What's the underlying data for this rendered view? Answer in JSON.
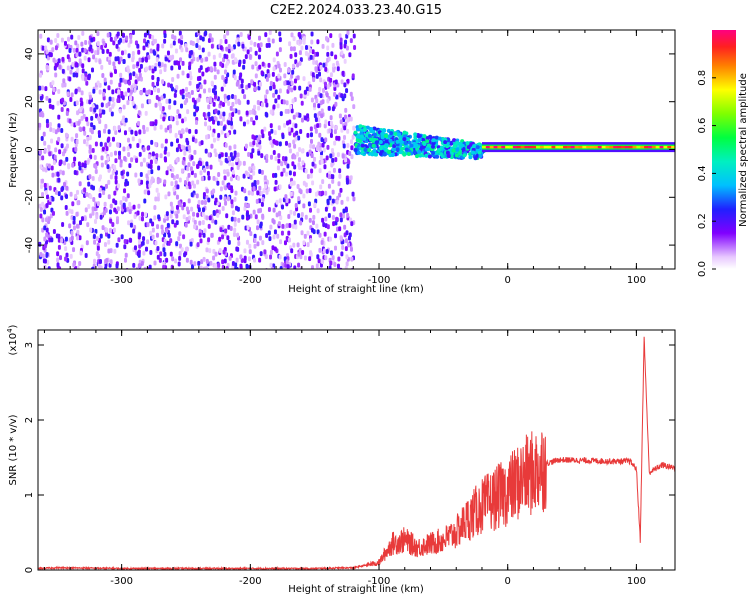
{
  "title": "C2E2.2024.033.23.40.G15",
  "colors": {
    "snr_line": "#e83a3a",
    "frame": "#000000"
  },
  "chart_data": [
    {
      "type": "heatmap",
      "xlabel": "Height of straight line (km)",
      "ylabel": "Frequency (Hz)",
      "xlim": [
        -365,
        130
      ],
      "ylim": [
        -50,
        50
      ],
      "xticks": [
        -300,
        -200,
        -100,
        0,
        100
      ],
      "xtick_labels": [
        "-300",
        "-200",
        "-100",
        "0",
        "100"
      ],
      "yticks": [
        -40,
        -20,
        0,
        20,
        40
      ],
      "ytick_labels": [
        "-40",
        "-20",
        "0",
        "20",
        "40"
      ],
      "colorbar": {
        "label": "Normalized spectral amplitude",
        "range": [
          0,
          1
        ],
        "ticks": [
          0.0,
          0.2,
          0.4,
          0.6,
          0.8
        ],
        "tick_labels": [
          "0.0",
          "0.2",
          "0.4",
          "0.6",
          "0.8"
        ]
      },
      "regions": [
        {
          "description_x": [
            -365,
            -120
          ],
          "pattern": "broadband noise",
          "amplitude": [
            0.0,
            0.25
          ]
        },
        {
          "description_x": [
            -120,
            -20
          ],
          "pattern": "drifting band near 0 Hz",
          "freq_center": [
            5,
            0
          ],
          "amplitude": [
            0.2,
            0.5
          ]
        },
        {
          "description_x": [
            -20,
            130
          ],
          "pattern": "narrow line at ~1 Hz",
          "freq_center": [
            1,
            1
          ],
          "amplitude": [
            0.7,
            1.0
          ]
        }
      ]
    },
    {
      "type": "line",
      "xlabel": "Height of straight line (km)",
      "ylabel": "SNR (10 * v/v)",
      "scale_label": "(x10",
      "scale_exp": "4",
      "scale_close": ")",
      "xlim": [
        -365,
        130
      ],
      "ylim": [
        0,
        3.2
      ],
      "xticks": [
        -300,
        -200,
        -100,
        0,
        100
      ],
      "xtick_labels": [
        "-300",
        "-200",
        "-100",
        "0",
        "100"
      ],
      "yticks": [
        0,
        1,
        2,
        3
      ],
      "ytick_labels": [
        "0",
        "1",
        "2",
        "3"
      ],
      "series": [
        {
          "x": [
            -365,
            -350,
            -300,
            -250,
            -200,
            -150,
            -120,
            -100,
            -90,
            -80,
            -70,
            -60,
            -50,
            -40,
            -30,
            -20,
            -10,
            0,
            10,
            20,
            30,
            40,
            60,
            80,
            95,
            100,
            103,
            106,
            110,
            120,
            130
          ],
          "y": [
            0.02,
            0.03,
            0.02,
            0.02,
            0.02,
            0.02,
            0.03,
            0.1,
            0.35,
            0.4,
            0.3,
            0.35,
            0.4,
            0.5,
            0.7,
            0.85,
            0.95,
            1.05,
            1.2,
            1.3,
            1.42,
            1.47,
            1.46,
            1.45,
            1.45,
            1.35,
            0.4,
            3.1,
            1.3,
            1.4,
            1.36
          ]
        }
      ]
    }
  ]
}
